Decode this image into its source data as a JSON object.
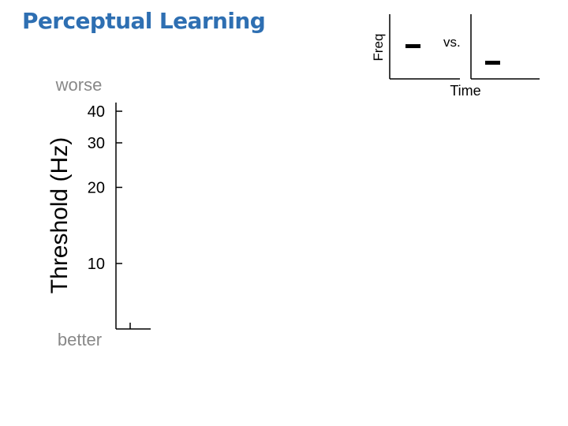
{
  "slide": {
    "title": "Perceptual Learning"
  },
  "stimulus_inset": {
    "ylabel": "Freq",
    "xlabel": "Time",
    "vs_label": "vs.",
    "panels": [
      {
        "tone": "higher"
      },
      {
        "tone": "lower"
      }
    ]
  },
  "chart_data": {
    "type": "line",
    "title": "",
    "xlabel": "",
    "ylabel": "Threshold (Hz)",
    "yscale": "log",
    "yticks": [
      10,
      20,
      30,
      40
    ],
    "ylim": [
      5,
      45
    ],
    "top_label": "worse",
    "bottom_label": "better",
    "series": [],
    "grid": false
  }
}
